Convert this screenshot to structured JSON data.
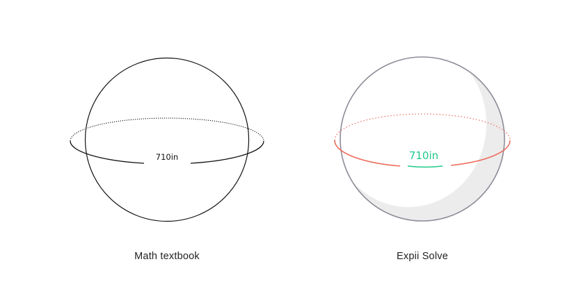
{
  "panels": [
    {
      "title": "Math textbook",
      "label": "710in",
      "style": "plain"
    },
    {
      "title": "Expii Solve",
      "label": "710in",
      "style": "styled"
    }
  ],
  "colors": {
    "plain_stroke": "#111111",
    "sphere_outline": "#8f8a97",
    "shade": "#ececec",
    "equator": "#ee6c5e",
    "label_accent": "#1fc98a",
    "title_text": "#222222"
  }
}
